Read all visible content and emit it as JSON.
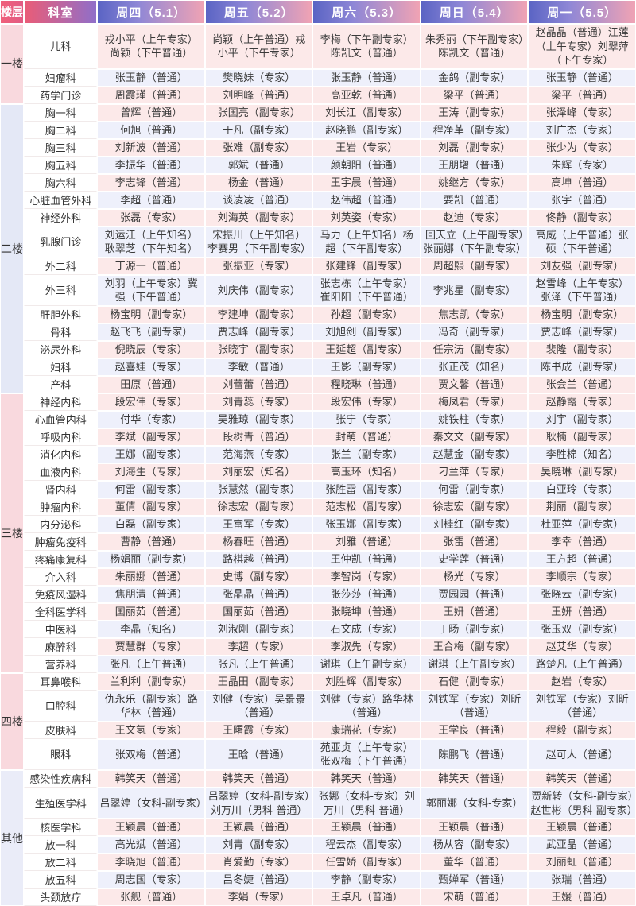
{
  "table": {
    "corner": {
      "floor": "楼层",
      "dept": "科室"
    },
    "days": [
      "周四（5.1）",
      "周五（5.2）",
      "周六（5.3）",
      "周日（5.4）",
      "周一（5.5）"
    ],
    "floors": [
      {
        "name": "一楼",
        "tone": "pink",
        "rows": [
          {
            "dept": "儿科",
            "cells": [
              "戎小平（上午专家）尚颖（下午普通）",
              "尚颖（上午普通）戎小平（下午专家）",
              "李梅（下午副专家）陈凯文（普通）",
              "朱秀丽（下午副专家）陈凯文（普通）",
              "赵晶晶（普通）江莲（上午专家）刘翠萍（下午专家）"
            ]
          },
          {
            "dept": "妇瘤科",
            "cells": [
              "张玉静（普通）",
              "樊晓妹（专家）",
              "张玉静（普通）",
              "金鸽（副专家）",
              "张玉静（普通）"
            ]
          },
          {
            "dept": "药学门诊",
            "cells": [
              "周霞瑾（普通）",
              "刘明峰（普通）",
              "高亚乾（普通）",
              "梁平（普通）",
              "梁平（普通）"
            ]
          }
        ]
      },
      {
        "name": "二楼",
        "tone": "lav",
        "rows": [
          {
            "dept": "胸一科",
            "cells": [
              "曾辉（普通）",
              "张国亮（副专家）",
              "刘长江（副专家）",
              "王涛（副专家）",
              "张泽峰（专家）"
            ]
          },
          {
            "dept": "胸二科",
            "cells": [
              "何旭（普通）",
              "于凡（副专家）",
              "赵晓鹏（副专家）",
              "程净革（副专家）",
              "刘广杰（专家）"
            ]
          },
          {
            "dept": "胸三科",
            "cells": [
              "刘新波（普通）",
              "张难（副专家）",
              "王岩（专家）",
              "刘磊（副专家）",
              "张少为（专家）"
            ]
          },
          {
            "dept": "胸五科",
            "cells": [
              "李振华（普通）",
              "郭斌（普通）",
              "颜朝阳（普通）",
              "王朋增（普通）",
              "朱辉（专家）"
            ]
          },
          {
            "dept": "胸六科",
            "cells": [
              "李志锋（普通）",
              "杨金（普通）",
              "王宇晨（普通）",
              "姚继方（专家）",
              "高坤（普通）"
            ]
          },
          {
            "dept": "心脏血管外科",
            "cells": [
              "李超（普通）",
              "谈凌凌（普通）",
              "赵伟超（普通）",
              "要凯（普通）",
              "张宇（普通）"
            ]
          },
          {
            "dept": "神经外科",
            "cells": [
              "张磊（专家）",
              "刘海英（副专家）",
              "刘英姿（专家）",
              "赵迪（专家）",
              "佟静（副专家）"
            ]
          },
          {
            "dept": "乳腺门诊",
            "cells": [
              "刘运江（上午知名）耿翠芝（下午知名）",
              "宋振川（上午知名）李赛男（下午副专家）",
              "马力（上午知名）杨超（下午副专家）",
              "回天立（上午副专家）张丽娜（下午副专家）",
              "高威（上午普通）张硕（下午普通）"
            ]
          },
          {
            "dept": "外二科",
            "cells": [
              "丁源一（普通）",
              "张振亚（专家）",
              "张建锋（副专家）",
              "周超熙（副专家）",
              "刘友强（副专家）"
            ]
          },
          {
            "dept": "外三科",
            "cells": [
              "刘羽（上午专家）冀强（下午普通）",
              "刘庆伟（副专家）",
              "张志栋（上午专家）崔阳阳（下午普通）",
              "李兆星（副专家）",
              "赵雪峰（上午专家）张泽（下午普通）"
            ]
          },
          {
            "dept": "肝胆外科",
            "cells": [
              "杨宝明（副专家）",
              "李建坤（副专家）",
              "孙超（副专家）",
              "焦志凯（专家）",
              "杨宝明（副专家）"
            ]
          },
          {
            "dept": "骨科",
            "cells": [
              "赵飞飞（副专家）",
              "贾志峰（副专家）",
              "刘旭剑（副专家）",
              "冯奇（副专家）",
              "贾志峰（副专家）"
            ]
          },
          {
            "dept": "泌尿外科",
            "cells": [
              "倪晓辰（专家）",
              "张晓宇（副专家）",
              "王延超（副专家）",
              "任宗涛（副专家）",
              "裴隆（副专家）"
            ]
          },
          {
            "dept": "妇科",
            "cells": [
              "赵喜娃（专家）",
              "李敏（普通）",
              "王影（副专家）",
              "张正茂（知名）",
              "陈书成（副专家）"
            ]
          },
          {
            "dept": "产科",
            "cells": [
              "田原（普通）",
              "刘蕾蕾（普通）",
              "程晓琳（普通）",
              "贾文馨（普通）",
              "张会兰（普通）"
            ]
          }
        ]
      },
      {
        "name": "三楼",
        "tone": "pink",
        "rows": [
          {
            "dept": "神经内科",
            "cells": [
              "段宏伟（专家）",
              "刘青蕊（专家）",
              "段宏伟（专家）",
              "梅凤君（专家）",
              "赵静霞（专家）"
            ]
          },
          {
            "dept": "心血管内科",
            "cells": [
              "付华（专家）",
              "吴雅琼（副专家）",
              "张宁（专家）",
              "姚铁柱（专家）",
              "刘宇（副专家）"
            ]
          },
          {
            "dept": "呼吸内科",
            "cells": [
              "李斌（副专家）",
              "段树青（普通）",
              "封萌（普通）",
              "秦文文（副专家）",
              "耿楠（副专家）"
            ]
          },
          {
            "dept": "消化内科",
            "cells": [
              "王娜（副专家）",
              "范海燕（专家）",
              "张兰（副专家）",
              "赵慧金（副专家）",
              "李胜棉（知名）"
            ]
          },
          {
            "dept": "血液内科",
            "cells": [
              "刘海生（专家）",
              "刘丽宏（知名）",
              "高玉环（知名）",
              "刁兰萍（专家）",
              "吴晓琳（副专家）"
            ]
          },
          {
            "dept": "肾内科",
            "cells": [
              "何雷（副专家）",
              "张慧然（副专家）",
              "张胜雷（副专家）",
              "何雷（副专家）",
              "白亚玲（专家）"
            ]
          },
          {
            "dept": "肿瘤内科",
            "cells": [
              "董倩（副专家）",
              "徐志宏（副专家）",
              "范志松（副专家）",
              "徐志宏（副专家）",
              "荆丽（副专家）"
            ]
          },
          {
            "dept": "内分泌科",
            "cells": [
              "白磊（副专家）",
              "王富军（专家）",
              "张玉娜（副专家）",
              "刘桂红（副专家）",
              "杜亚萍（副专家）"
            ]
          },
          {
            "dept": "肿瘤免疫科",
            "cells": [
              "曹静（普通）",
              "杨春旺（普通）",
              "刘雅（普通）",
              "张雷（普通）",
              "李幸（普通）"
            ]
          },
          {
            "dept": "疼痛康复科",
            "cells": [
              "杨娟丽（副专家）",
              "路棋越（普通）",
              "王仲凯（普通）",
              "史学莲（普通）",
              "王方超（普通）"
            ]
          },
          {
            "dept": "介入科",
            "cells": [
              "朱丽娜（普通）",
              "史博（副专家）",
              "李智岗（专家）",
              "杨光（专家）",
              "李顺宗（专家）"
            ]
          },
          {
            "dept": "免疫风湿科",
            "cells": [
              "焦朋清（普通）",
              "张晶晶（普通）",
              "张莎莎（普通）",
              "贾园园（普通）",
              "张晓云（副专家）"
            ]
          },
          {
            "dept": "全科医学科",
            "cells": [
              "国丽茹（普通）",
              "国丽茹（普通）",
              "张晓坤（普通）",
              "王妍（普通）",
              "王妍（普通）"
            ]
          },
          {
            "dept": "中医科",
            "cells": [
              "李晶（知名）",
              "刘淑刚（副专家）",
              "石文成（专家）",
              "丁旸（副专家）",
              "张玉双（副专家）"
            ]
          },
          {
            "dept": "麻醉科",
            "cells": [
              "贾慧群（专家）",
              "李超（专家）",
              "李淑先（专家）",
              "王合梅（副专家）",
              "赵艾华（专家）"
            ]
          },
          {
            "dept": "营养科",
            "cells": [
              "张凡（上午普通）",
              "张凡（上午普通）",
              "谢琪（上午副专家）",
              "谢琪（上午副专家）",
              "路楚凡（上午普通）"
            ]
          }
        ]
      },
      {
        "name": "四楼",
        "tone": "pink",
        "rows": [
          {
            "dept": "耳鼻喉科",
            "cells": [
              "兰利利（副专家）",
              "王晶田（副专家）",
              "刘胜辉（副专家）",
              "石健（副专家）",
              "赵岩（专家）"
            ]
          },
          {
            "dept": "口腔科",
            "cells": [
              "仇永乐（副专家）路华林（普通）",
              "刘健（专家）吴景景（普通）",
              "刘健（专家）路华林（普通）",
              "刘铁军（专家）刘昕（普通）",
              "刘铁军（专家）刘昕（普通）"
            ]
          },
          {
            "dept": "皮肤科",
            "cells": [
              "王文氢（专家）",
              "王曙霞（专家）",
              "康瑞花（专家）",
              "王学良（普通）",
              "程毅（副专家）"
            ]
          },
          {
            "dept": "眼科",
            "cells": [
              "张双梅（普通）",
              "王晗（普通）",
              "苑亚贞（上午专家）张双梅（下午普通）",
              "陈鹏飞（普通）",
              "赵可人（普通）"
            ]
          }
        ]
      },
      {
        "name": "其他",
        "tone": "lav2",
        "rows": [
          {
            "dept": "感染性疾病科",
            "cells": [
              "韩笑天（普通）",
              "韩笑天（普通）",
              "韩笑天（普通）",
              "韩笑天（普通）",
              "韩笑天（普通）"
            ]
          },
          {
            "dept": "生殖医学科",
            "cells": [
              "吕翠婷（女科-副专家）",
              "吕翠婷（女科-副专家）刘万川（男科-普通）",
              "张娜（女科-专家）刘万川（男科-普通）",
              "郭丽娜（女科-专家）",
              "贾新转（女科-副专家）赵世彬（男科-副专家）"
            ]
          },
          {
            "dept": "核医学科",
            "cells": [
              "王颖晨（普通）",
              "王颖晨（普通）",
              "王颖晨（普通）",
              "王颖晨（普通）",
              "王颖晨（普通）"
            ]
          },
          {
            "dept": "放一科",
            "cells": [
              "高光斌（普通）",
              "刘青（副专家）",
              "程云杰（副专家）",
              "杨从容（副专家）",
              "武亚晶（普通）"
            ]
          },
          {
            "dept": "放二科",
            "cells": [
              "李晓旭（普通）",
              "肖爱勤（专家）",
              "任雪娇（副专家）",
              "董华（普通）",
              "刘丽虹（普通）"
            ]
          },
          {
            "dept": "放五科",
            "cells": [
              "周志国（专家）",
              "吕冬婕（普通）",
              "李静（副专家）",
              "甄婵军（普通）",
              "张瑞（普通）"
            ]
          },
          {
            "dept": "头颈放疗",
            "cells": [
              "张舰（普通）",
              "李娟（专家）",
              "王卓凡（普通）",
              "宋萌（普通）",
              "王媛（普通）"
            ]
          }
        ]
      }
    ]
  },
  "colors": {
    "row_pink": "#fce9e9",
    "row_lavender": "#eef0fb",
    "floor_pink": "#f9d9de",
    "floor_lavender": "#e4e8f6",
    "floor_lavender_light": "#eaecf8",
    "header_day_left": "#5a64c4",
    "header_day_mid": "#8f87d6",
    "header_day_right": "#f0a3b4",
    "header_dept_left": "#ea5c77",
    "header_dept_right": "#906fc9",
    "header_floor_left": "#f0607a",
    "header_floor_right": "#e25c84",
    "text": "#333333"
  }
}
